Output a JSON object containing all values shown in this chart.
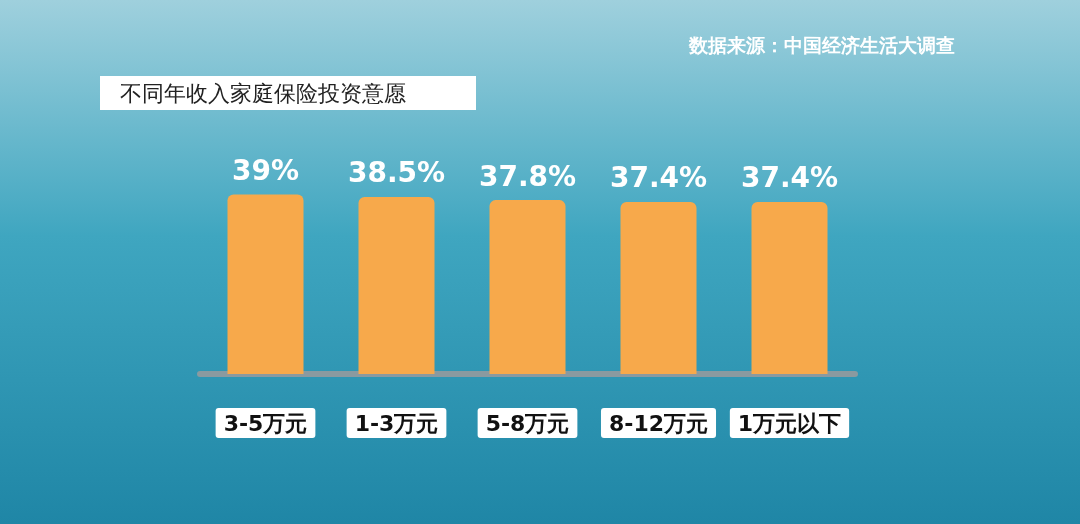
{
  "chart_data": {
    "type": "bar",
    "title": "不同年收入家庭保险投资意愿",
    "annotations": [
      "数据来源：中国经济生活大调查"
    ],
    "categories": [
      "3-5万元",
      "1-3万元",
      "5-8万元",
      "8-12万元",
      "1万元以下"
    ],
    "values": [
      39,
      38.5,
      37.8,
      37.4,
      37.4
    ],
    "color": "#f7a94b",
    "data_labels": true,
    "value_labels": [
      "39%",
      "38.5%",
      "37.8%",
      "37.4%",
      "37.4%"
    ]
  }
}
